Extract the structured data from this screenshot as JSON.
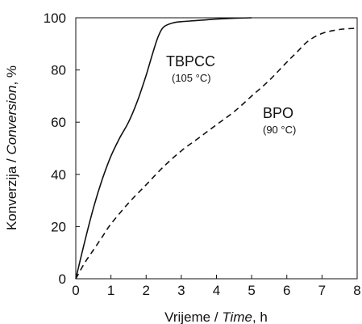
{
  "chart_data": {
    "type": "line",
    "title": "",
    "xlabel": {
      "plain": "Vrijeme / ",
      "italic": "Time",
      "unit": ", h"
    },
    "ylabel": {
      "plain": "Konverzija / ",
      "italic": "Conversion",
      "unit": ", %"
    },
    "xlim": [
      0,
      8
    ],
    "ylim": [
      0,
      100
    ],
    "xticks": [
      "0",
      "1",
      "2",
      "3",
      "4",
      "5",
      "6",
      "7",
      "8"
    ],
    "yticks": [
      "0",
      "20",
      "40",
      "60",
      "80",
      "100"
    ],
    "grid": false,
    "series": [
      {
        "name": "TBPCC",
        "condition": "(105 °C)",
        "style": "solid",
        "x": [
          0,
          0.25,
          0.5,
          0.75,
          1.0,
          1.25,
          1.5,
          1.75,
          2.0,
          2.2,
          2.35,
          2.5,
          2.75,
          3.0,
          3.5,
          4.0,
          4.5,
          5.0
        ],
        "y": [
          0,
          14,
          27,
          38,
          47,
          54,
          60,
          68,
          78,
          87,
          93,
          96.5,
          98,
          98.5,
          99,
          99.5,
          99.8,
          100
        ]
      },
      {
        "name": "BPO",
        "condition": "(90 °C)",
        "style": "dashed",
        "x": [
          0,
          0.25,
          0.5,
          0.75,
          1.0,
          1.5,
          2.0,
          2.5,
          3.0,
          3.5,
          4.0,
          4.5,
          5.0,
          5.5,
          6.0,
          6.3,
          6.6,
          7.0,
          7.5,
          8.0
        ],
        "y": [
          0,
          6,
          11,
          16,
          21,
          29,
          36,
          43,
          49,
          54,
          59,
          64,
          70,
          76,
          83,
          87,
          91,
          94,
          95.5,
          96
        ]
      }
    ]
  }
}
